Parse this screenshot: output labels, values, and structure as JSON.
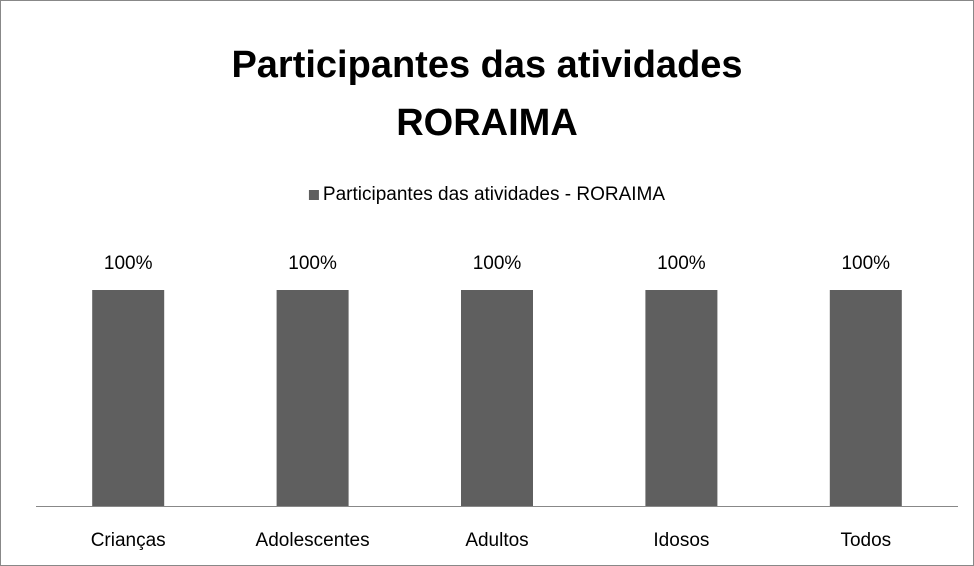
{
  "chart_data": {
    "type": "bar",
    "title": "Participantes das atividades RORAIMA",
    "categories": [
      "Crianças",
      "Adolescentes",
      "Adultos",
      "Idosos",
      "Todos"
    ],
    "series": [
      {
        "name": "Participantes das atividades - RORAIMA",
        "color": "#5f5f5f",
        "values": [
          100,
          100,
          100,
          100,
          100
        ],
        "value_labels": [
          "100%",
          "100%",
          "100%",
          "100%",
          "100%"
        ]
      }
    ],
    "legend": "top"
  }
}
